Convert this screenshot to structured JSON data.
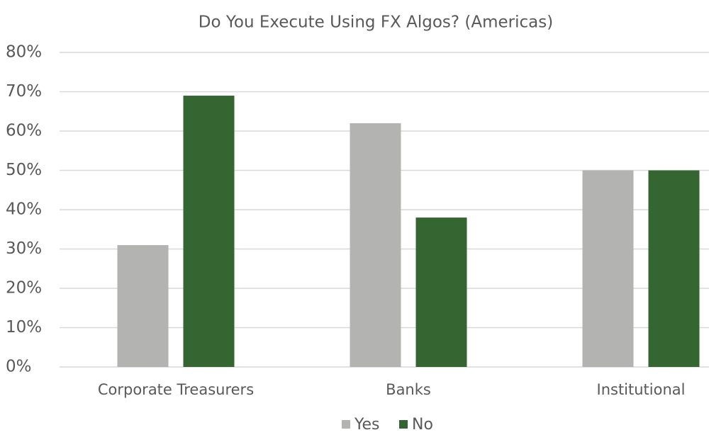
{
  "chart_data": {
    "type": "bar",
    "title": "Do You Execute Using FX Algos? (Americas)",
    "categories": [
      "Corporate Treasurers",
      "Banks",
      "Institutional"
    ],
    "series": [
      {
        "name": "Yes",
        "color": "#b3b3b2",
        "values": [
          31,
          62,
          50
        ]
      },
      {
        "name": "No",
        "color": "#356530",
        "values": [
          69,
          38,
          50
        ]
      }
    ],
    "ylim": [
      0,
      80
    ],
    "yticks": [
      {
        "value": 0,
        "label": "0%"
      },
      {
        "value": 10,
        "label": "10%"
      },
      {
        "value": 20,
        "label": "20%"
      },
      {
        "value": 30,
        "label": "30%"
      },
      {
        "value": 40,
        "label": "40%"
      },
      {
        "value": 50,
        "label": "50%"
      },
      {
        "value": 60,
        "label": "60%"
      },
      {
        "value": 70,
        "label": "70%"
      },
      {
        "value": 80,
        "label": "80%"
      }
    ],
    "grid": true,
    "legend": "bottom"
  }
}
